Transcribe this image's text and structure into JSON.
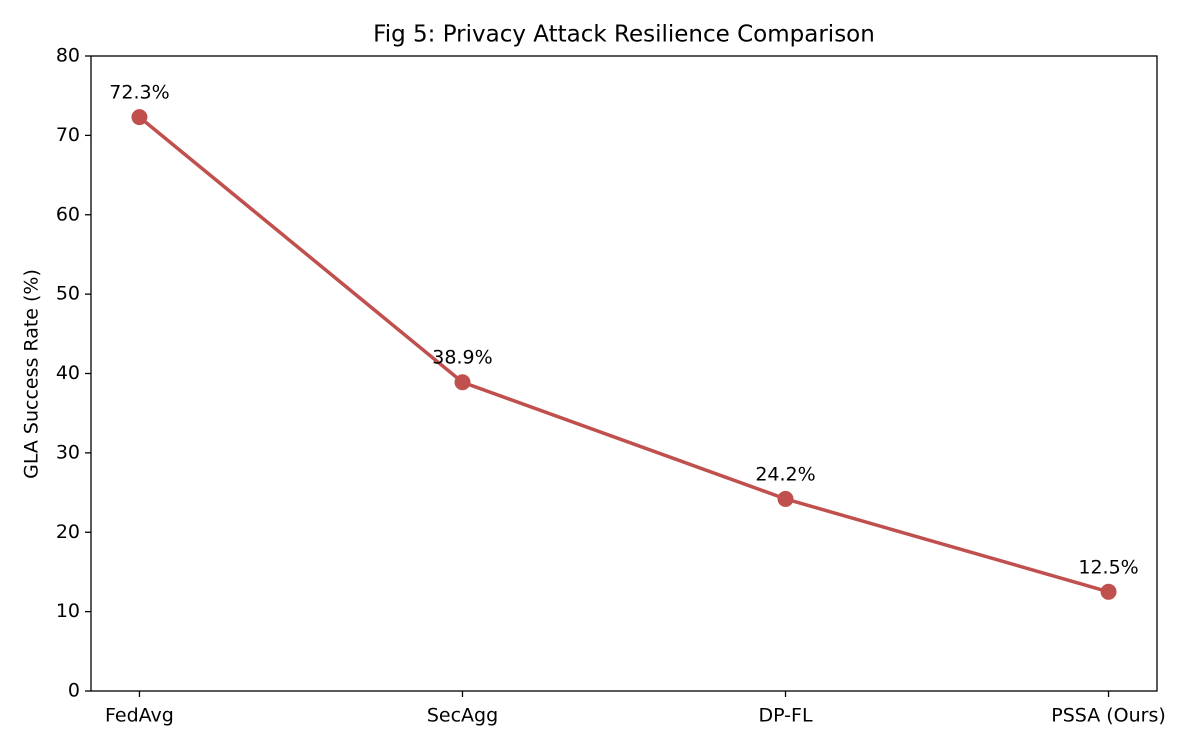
{
  "chart_data": {
    "type": "line",
    "title": "Fig 5: Privacy Attack Resilience Comparison",
    "y_label": "GLA Success Rate (%)",
    "categories": [
      "FedAvg",
      "SecAgg",
      "DP-FL",
      "PSSA (Ours)"
    ],
    "values": [
      72.3,
      38.9,
      24.2,
      12.5
    ],
    "value_labels": [
      "72.3%",
      "38.9%",
      "24.2%",
      "12.5%"
    ],
    "color": "#c0504d",
    "ylim": [
      0,
      80
    ],
    "yticks": [
      0,
      10,
      20,
      30,
      40,
      50,
      60,
      70,
      80
    ],
    "grid": false
  }
}
